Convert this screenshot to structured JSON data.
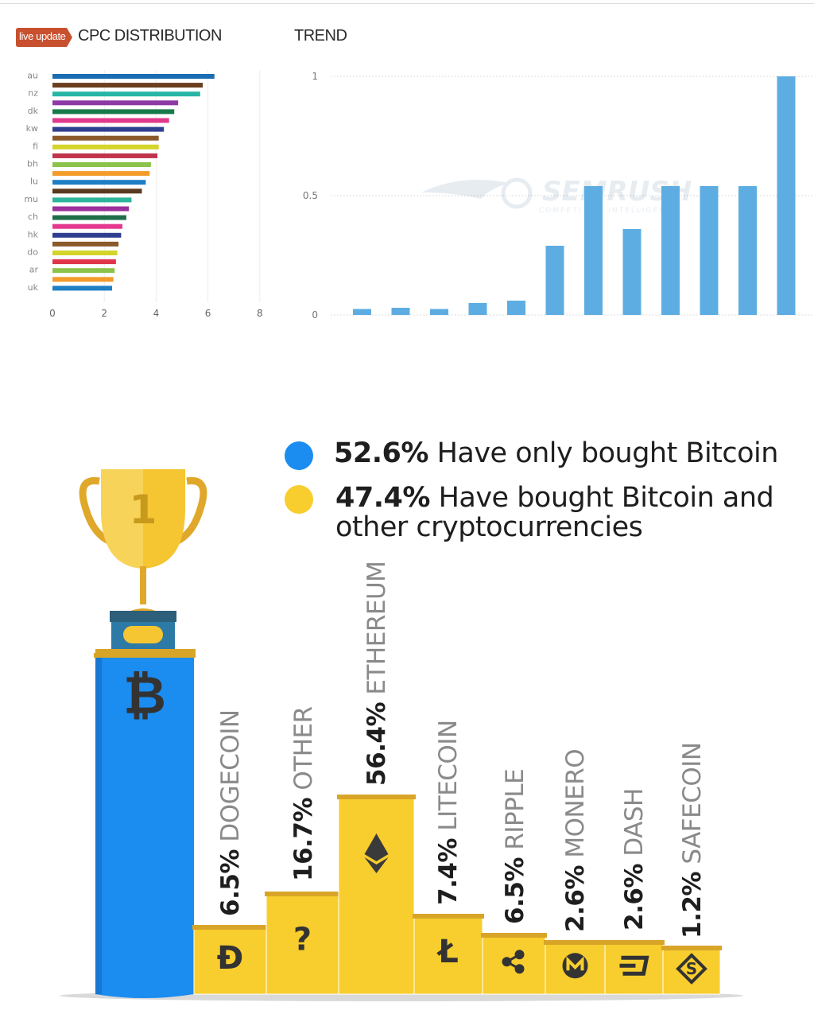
{
  "header": {
    "live_badge": "live update",
    "cpc_title": "CPC DISTRIBUTION",
    "trend_title": "TREND"
  },
  "colors": {
    "badge": "#c8502e",
    "trend_bar": "#5dade2",
    "bitcoin_blue": "#1b8cf0",
    "altcoin_yellow": "#f8cd2e"
  },
  "chart_data": [
    {
      "type": "bar",
      "orientation": "horizontal",
      "title": "CPC DISTRIBUTION",
      "xlim": [
        0,
        8
      ],
      "xticks": [
        0,
        2,
        4,
        6,
        8
      ],
      "ytick_labels": [
        "au",
        "nz",
        "dk",
        "kw",
        "fi",
        "bh",
        "lu",
        "mu",
        "ch",
        "hk",
        "do",
        "ar",
        "uk"
      ],
      "values": [
        6.25,
        5.8,
        5.7,
        4.85,
        4.7,
        4.5,
        4.3,
        4.1,
        4.1,
        4.05,
        3.8,
        3.75,
        3.6,
        3.45,
        3.05,
        2.95,
        2.85,
        2.7,
        2.65,
        2.55,
        2.5,
        2.45,
        2.4,
        2.35,
        2.3
      ],
      "colors": [
        "#1a6db3",
        "#6b3e1f",
        "#27b5a6",
        "#8e3aa6",
        "#177a4b",
        "#e03a8a",
        "#2f3f8f",
        "#8b5a2b",
        "#d4d42a",
        "#c0334a",
        "#8bc34a",
        "#f39c2a",
        "#1f7ec4",
        "#5a3a1f",
        "#2bb59a",
        "#9b2f9b",
        "#1f6e4a",
        "#e5398f",
        "#2f3f8f",
        "#8b5a2b",
        "#d4d42a",
        "#e0354a",
        "#8bc34a",
        "#f39c2a",
        "#1f7ec4"
      ],
      "grid": true
    },
    {
      "type": "bar",
      "title": "TREND",
      "ylim": [
        0,
        1
      ],
      "yticks": [
        "0",
        "0.5",
        "1"
      ],
      "values": [
        0.025,
        0.03,
        0.025,
        0.05,
        0.06,
        0.29,
        0.54,
        0.36,
        0.54,
        0.54,
        0.54,
        1.0
      ],
      "watermark": "SEMRUSH",
      "watermark_sub": "COMPETITIVE INTELLIGENCE",
      "grid": true
    },
    {
      "type": "bar",
      "legend": [
        {
          "pct": "52.6%",
          "text": "Have only bought Bitcoin",
          "color": "#1b8cf0"
        },
        {
          "pct": "47.4%",
          "text": "Have bought Bitcoin and",
          "text2": "other cryptocurrencies",
          "color": "#f8cd2e"
        }
      ],
      "trophy_rank": "1",
      "categories": [
        "BITCOIN",
        "DOGECOIN",
        "OTHER",
        "ETHEREUM",
        "LITECOIN",
        "RIPPLE",
        "MONERO",
        "DASH",
        "SAFECOIN"
      ],
      "values": [
        100,
        6.5,
        16.7,
        56.4,
        7.4,
        6.5,
        2.6,
        2.6,
        1.2
      ],
      "labels": [
        {
          "pct": "",
          "name": ""
        },
        {
          "pct": "6.5%",
          "name": "DOGECOIN"
        },
        {
          "pct": "16.7%",
          "name": "OTHER"
        },
        {
          "pct": "56.4%",
          "name": "ETHEREUM"
        },
        {
          "pct": "7.4%",
          "name": "LITECOIN"
        },
        {
          "pct": "6.5%",
          "name": "RIPPLE"
        },
        {
          "pct": "2.6%",
          "name": "MONERO"
        },
        {
          "pct": "2.6%",
          "name": "DASH"
        },
        {
          "pct": "1.2%",
          "name": "SAFECOIN"
        }
      ],
      "icons": [
        "bitcoin-icon",
        "dogecoin-icon",
        "question-icon",
        "ethereum-icon",
        "litecoin-icon",
        "ripple-icon",
        "monero-icon",
        "dash-icon",
        "safecoin-icon"
      ],
      "glyphs": [
        "₿",
        "Ð",
        "?",
        "",
        "Ł",
        "",
        "",
        "",
        "S"
      ]
    }
  ]
}
